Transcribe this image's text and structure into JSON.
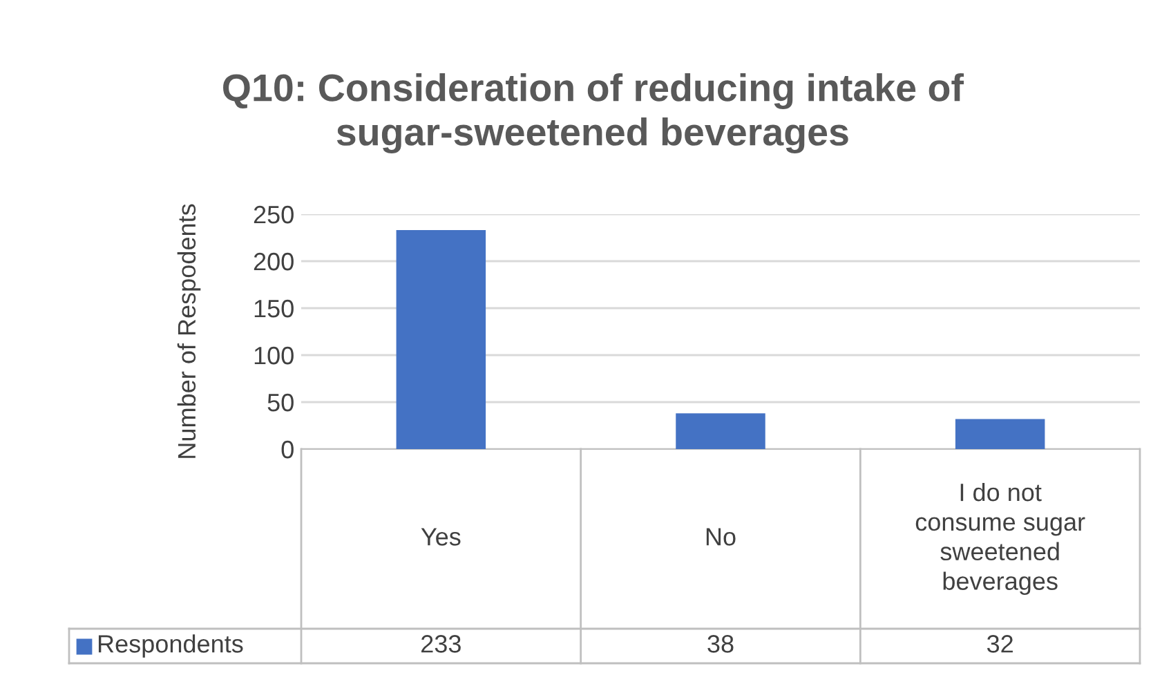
{
  "chart_data": {
    "type": "bar",
    "title": "Q10: Consideration of reducing intake of sugar-sweetened beverages",
    "ylabel": "Number of Respodents",
    "categories": [
      "Yes",
      "No",
      "I do not consume sugar sweetened beverages"
    ],
    "series": [
      {
        "name": "Respondents",
        "color": "#4472c4",
        "values": [
          233,
          38,
          32
        ]
      }
    ],
    "ylim": [
      0,
      250
    ],
    "yticks": [
      0,
      50,
      100,
      150,
      200,
      250
    ],
    "grid": "y",
    "data_labels": true,
    "legend": "bottom"
  }
}
